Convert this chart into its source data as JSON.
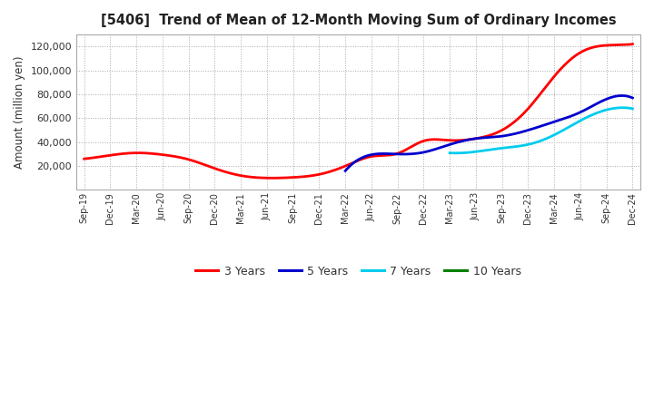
{
  "title": "[5406]  Trend of Mean of 12-Month Moving Sum of Ordinary Incomes",
  "ylabel": "Amount (million yen)",
  "background_color": "#ffffff",
  "plot_bg_color": "#ffffff",
  "grid_color": "#aaaaaa",
  "x_labels": [
    "Sep-19",
    "Dec-19",
    "Mar-20",
    "Jun-20",
    "Sep-20",
    "Dec-20",
    "Mar-21",
    "Jun-21",
    "Sep-21",
    "Dec-21",
    "Mar-22",
    "Jun-22",
    "Sep-22",
    "Dec-22",
    "Mar-23",
    "Jun-23",
    "Sep-23",
    "Dec-23",
    "Mar-24",
    "Jun-24",
    "Sep-24",
    "Dec-24"
  ],
  "series": {
    "3 Years": {
      "color": "#ff0000",
      "values": [
        26000,
        29000,
        31000,
        29500,
        25500,
        18000,
        12000,
        10000,
        10500,
        13000,
        20000,
        28000,
        30500,
        41000,
        41500,
        43000,
        50000,
        68000,
        95000,
        115000,
        121000,
        122000
      ]
    },
    "5 Years": {
      "color": "#0000cc",
      "values": [
        null,
        null,
        null,
        null,
        null,
        null,
        null,
        null,
        null,
        null,
        16000,
        29500,
        30000,
        31500,
        38000,
        43000,
        45000,
        50000,
        57000,
        65000,
        76000,
        77000
      ]
    },
    "7 Years": {
      "color": "#00ccee",
      "values": [
        null,
        null,
        null,
        null,
        null,
        null,
        null,
        null,
        null,
        null,
        null,
        null,
        null,
        null,
        31000,
        32000,
        35000,
        38000,
        46000,
        58000,
        67000,
        68000
      ]
    },
    "10 Years": {
      "color": "#008000",
      "values": [
        null,
        null,
        null,
        null,
        null,
        null,
        null,
        null,
        null,
        null,
        null,
        null,
        null,
        null,
        null,
        null,
        null,
        null,
        null,
        null,
        null,
        null
      ]
    }
  },
  "ylim": [
    0,
    130000
  ],
  "yticks": [
    20000,
    40000,
    60000,
    80000,
    100000,
    120000
  ],
  "legend_entries": [
    "3 Years",
    "5 Years",
    "7 Years",
    "10 Years"
  ],
  "legend_colors": [
    "#ff0000",
    "#0000cc",
    "#00ccee",
    "#008000"
  ]
}
